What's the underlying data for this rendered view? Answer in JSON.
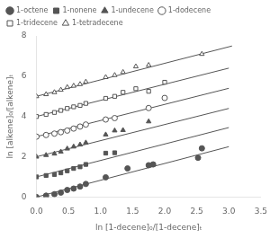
{
  "chart_data": {
    "type": "scatter",
    "xlabel": "ln [1-decene]₀/[1-decene]ₜ",
    "ylabel": "ln [alkene]₀/[alkene]ₜ",
    "xlim": [
      0,
      3.5
    ],
    "ylim": [
      0,
      8
    ],
    "xticks": [
      {
        "value": 0,
        "label": "0.0"
      },
      0.5,
      {
        "value": 1,
        "label": "1.0"
      },
      1.5,
      {
        "value": 2,
        "label": "2.0"
      },
      2.5,
      {
        "value": 3,
        "label": "3.0"
      },
      3.5
    ],
    "yticks": [
      0,
      2,
      4,
      6,
      8
    ],
    "grid": false,
    "legend": "upper left",
    "series": [
      {
        "name": "1-octene",
        "color": "#555555",
        "marker": "circle",
        "x": [
          0.0,
          0.15,
          0.28,
          0.38,
          0.48,
          0.58,
          0.68,
          0.77,
          1.08,
          1.42,
          1.75,
          1.82,
          2.52,
          2.58
        ],
        "values": [
          0.0,
          0.07,
          0.14,
          0.22,
          0.35,
          0.42,
          0.52,
          0.65,
          0.98,
          1.42,
          1.58,
          1.62,
          1.95,
          2.42
        ],
        "fit": {
          "x": [
            0.0,
            3.0
          ],
          "y": [
            0.0,
            2.5
          ]
        }
      },
      {
        "name": "1-nonene",
        "color": "#555555",
        "marker": "square",
        "x": [
          0.0,
          0.15,
          0.28,
          0.38,
          0.48,
          0.58,
          0.68,
          0.77,
          1.08,
          1.22
        ],
        "values": [
          1.0,
          1.07,
          1.12,
          1.2,
          1.3,
          1.42,
          1.5,
          1.62,
          2.18,
          2.2
        ],
        "fit": {
          "x": [
            0.0,
            3.0
          ],
          "y": [
            1.0,
            3.45
          ]
        }
      },
      {
        "name": "1-undecene",
        "color": "#555555",
        "marker": "triangle",
        "x": [
          0.0,
          0.15,
          0.28,
          0.38,
          0.48,
          0.58,
          0.68,
          0.77,
          1.08,
          1.22,
          1.35,
          1.75
        ],
        "values": [
          2.0,
          2.08,
          2.15,
          2.25,
          2.4,
          2.5,
          2.6,
          2.7,
          3.1,
          3.3,
          3.32,
          3.75
        ],
        "fit": {
          "x": [
            0.0,
            3.0
          ],
          "y": [
            2.0,
            4.4
          ]
        }
      },
      {
        "name": "1-dodecene",
        "color": "#555555",
        "marker": "circle-open",
        "x": [
          0.0,
          0.15,
          0.28,
          0.38,
          0.48,
          0.58,
          0.68,
          0.77,
          1.08,
          1.22,
          1.75,
          2.0
        ],
        "values": [
          3.0,
          3.08,
          3.15,
          3.22,
          3.3,
          3.4,
          3.5,
          3.6,
          3.85,
          3.92,
          4.42,
          4.92
        ],
        "fit": {
          "x": [
            0.0,
            3.0
          ],
          "y": [
            3.0,
            5.4
          ]
        }
      },
      {
        "name": "1-tridecene",
        "color": "#555555",
        "marker": "square-open",
        "x": [
          0.0,
          0.15,
          0.28,
          0.38,
          0.48,
          0.58,
          0.68,
          0.77,
          1.08,
          1.22,
          1.35,
          1.55,
          1.75,
          2.0
        ],
        "values": [
          4.0,
          4.1,
          4.2,
          4.3,
          4.4,
          4.48,
          4.55,
          4.65,
          4.9,
          5.0,
          5.2,
          5.38,
          5.25,
          5.7
        ],
        "fit": {
          "x": [
            0.0,
            3.0
          ],
          "y": [
            4.0,
            6.4
          ]
        }
      },
      {
        "name": "1-tetradecene",
        "color": "#555555",
        "marker": "triangle-open",
        "x": [
          0.0,
          0.15,
          0.28,
          0.38,
          0.48,
          0.58,
          0.68,
          0.77,
          1.08,
          1.22,
          1.35,
          1.55,
          1.75,
          2.58
        ],
        "values": [
          5.0,
          5.1,
          5.2,
          5.32,
          5.45,
          5.52,
          5.6,
          5.72,
          5.95,
          6.05,
          6.2,
          6.48,
          6.55,
          7.1
        ],
        "fit": {
          "x": [
            0.0,
            3.05
          ],
          "y": [
            5.0,
            7.5
          ]
        }
      }
    ]
  }
}
